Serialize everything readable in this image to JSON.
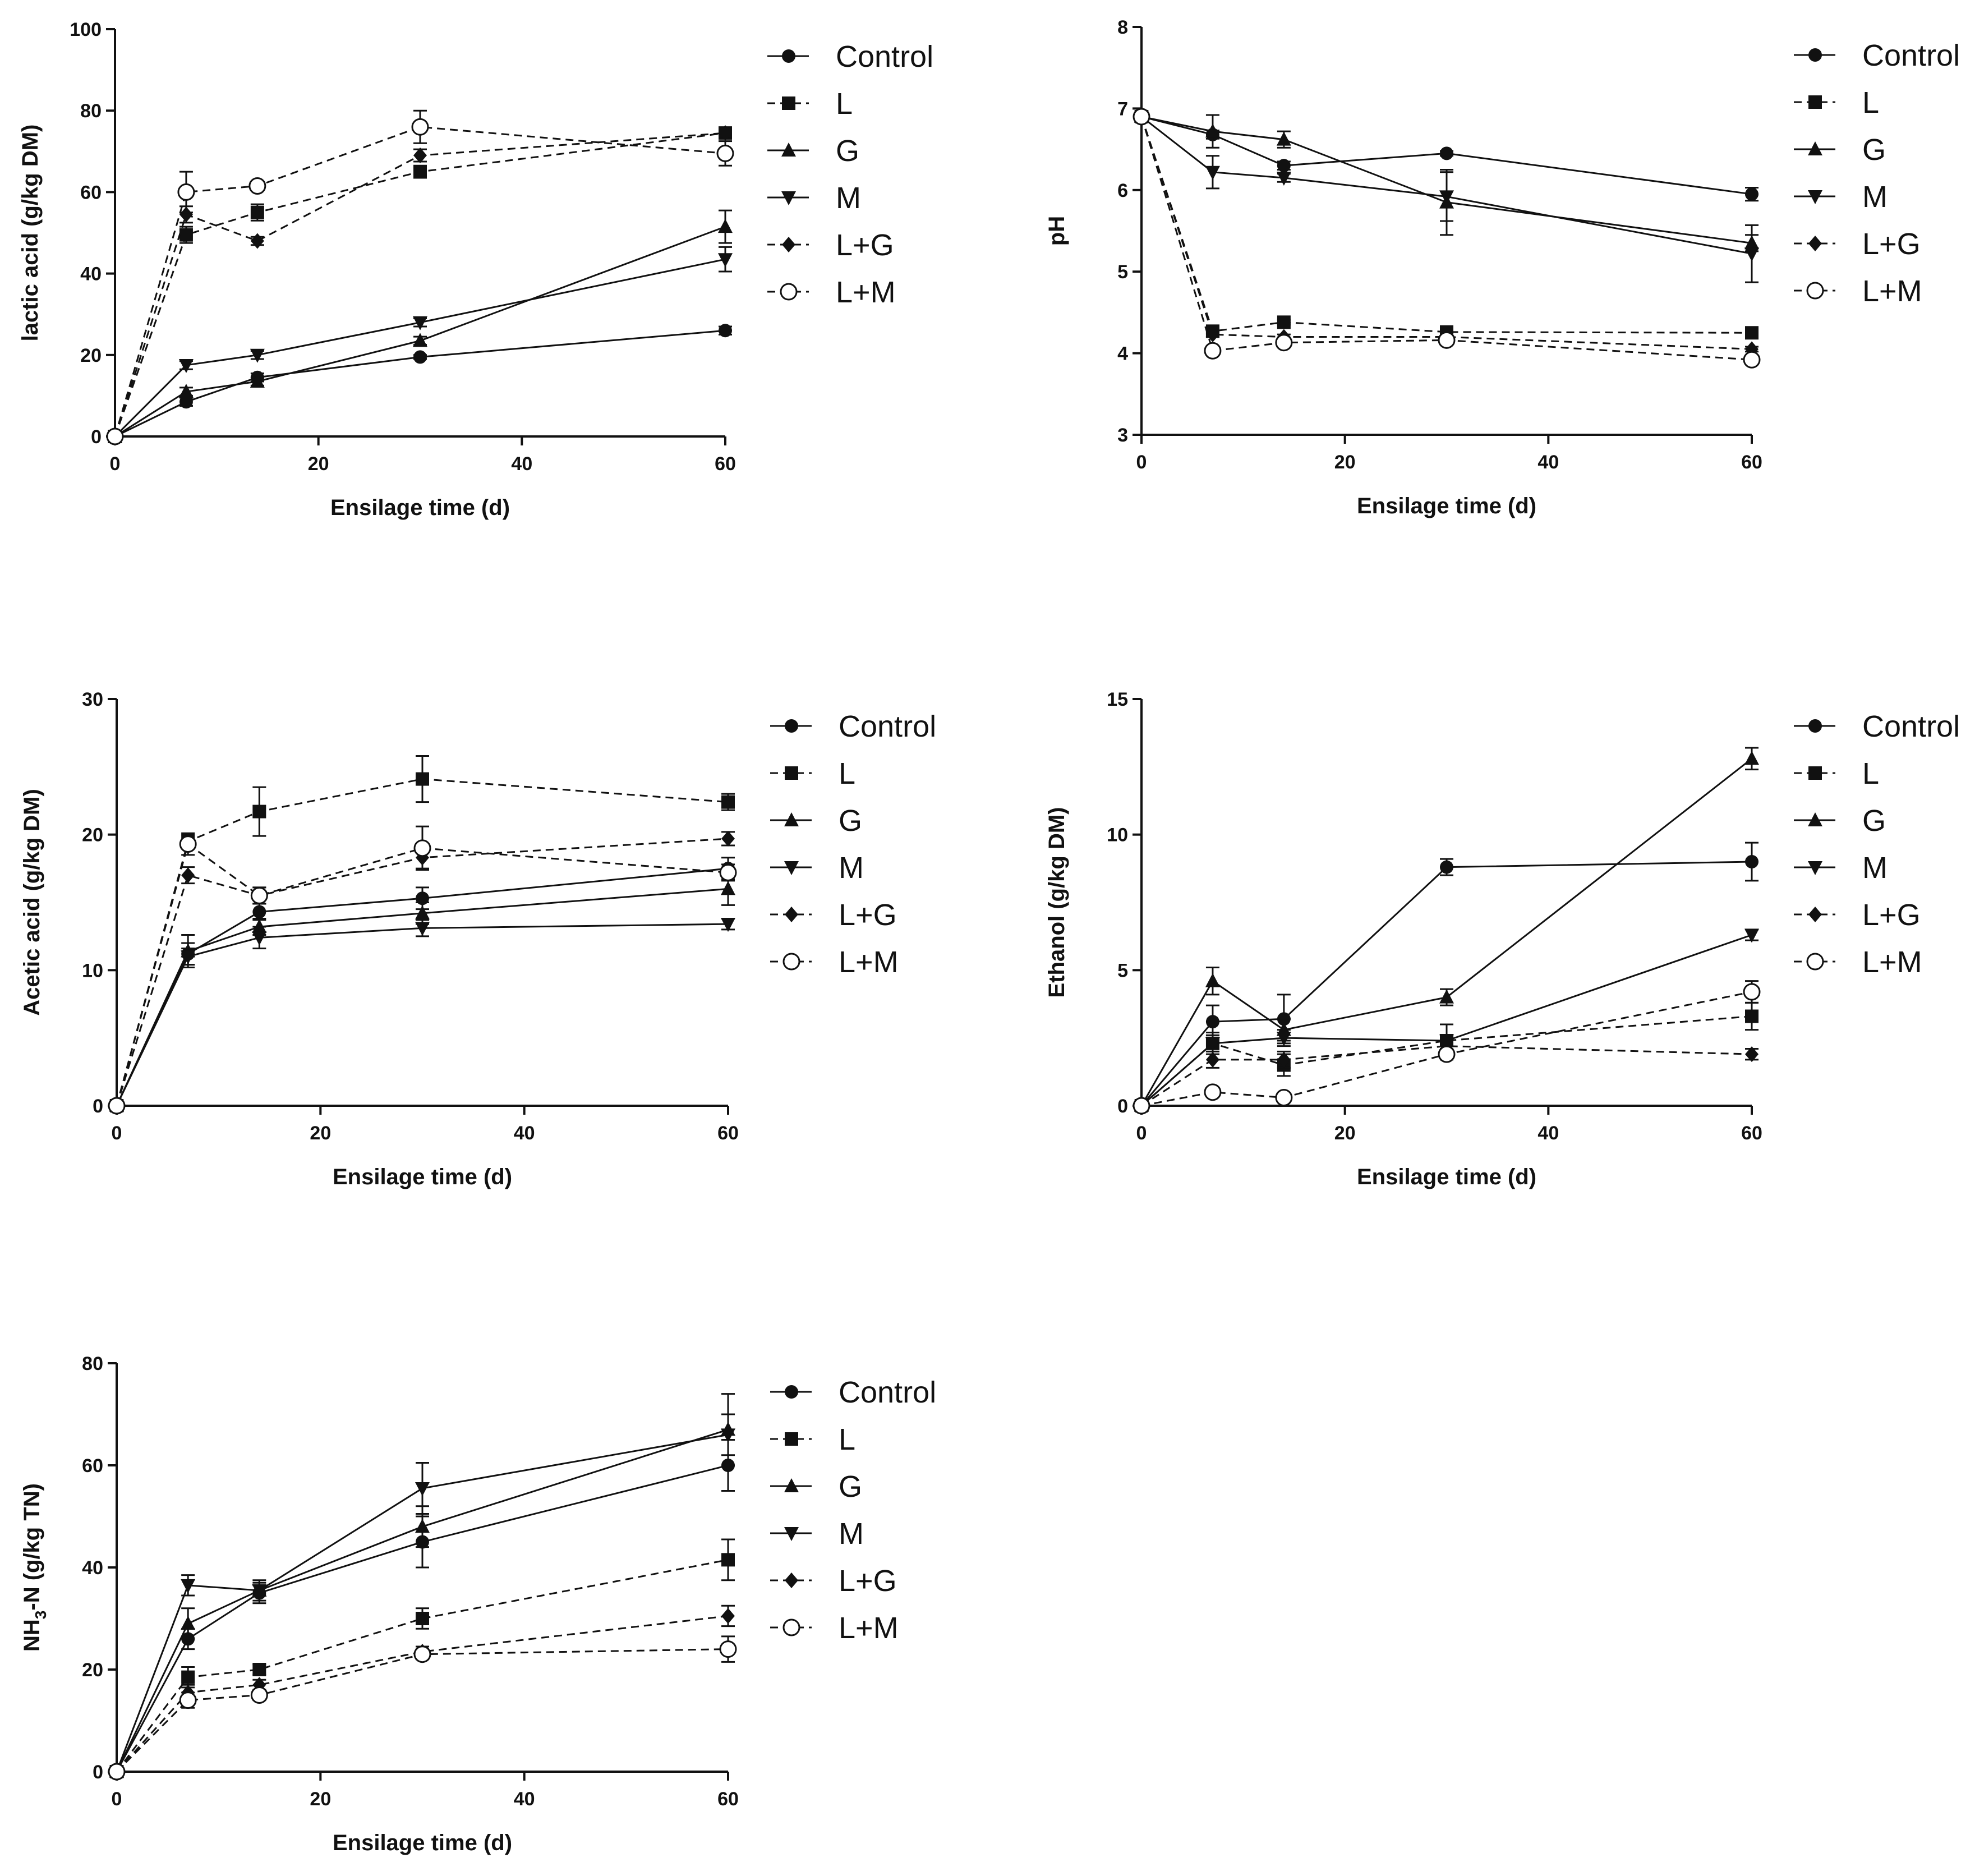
{
  "chart_data": [
    {
      "type": "line",
      "title": "",
      "xlabel": "Ensilage time (d)",
      "ylabel": "lactic acid (g/kg DM)",
      "xlim": [
        0,
        60
      ],
      "ylim": [
        0,
        100
      ],
      "xticks": [
        "0",
        "20",
        "40",
        "60"
      ],
      "yticks": [
        "0",
        "20",
        "40",
        "60",
        "80",
        "100"
      ],
      "x": [
        0,
        7,
        14,
        30,
        60
      ],
      "legend_position": "right",
      "series": [
        {
          "name": "Control",
          "values": [
            0,
            8.5,
            14.5,
            19.5,
            26
          ],
          "errors": [
            0,
            1,
            1,
            0.5,
            1
          ]
        },
        {
          "name": "L",
          "values": [
            0,
            49.5,
            55,
            65,
            74.5
          ],
          "errors": [
            0,
            2,
            2,
            1.5,
            1
          ]
        },
        {
          "name": "G",
          "values": [
            0,
            11,
            13.5,
            23.5,
            51.5
          ],
          "errors": [
            0,
            1,
            1,
            1,
            4
          ]
        },
        {
          "name": "M",
          "values": [
            0,
            17.5,
            20,
            28,
            43.5
          ],
          "errors": [
            0,
            1,
            1,
            1,
            3
          ]
        },
        {
          "name": "L+G",
          "values": [
            0,
            54.5,
            48,
            69,
            74.5
          ],
          "errors": [
            0,
            2,
            1,
            1.5,
            1
          ]
        },
        {
          "name": "L+M",
          "values": [
            0,
            60,
            61.5,
            76,
            69.5
          ],
          "errors": [
            0,
            5,
            1,
            4,
            3
          ]
        }
      ]
    },
    {
      "type": "line",
      "title": "",
      "xlabel": "Ensilage time (d)",
      "ylabel": "pH",
      "xlim": [
        0,
        60
      ],
      "ylim": [
        3,
        8
      ],
      "xticks": [
        "0",
        "20",
        "40",
        "60"
      ],
      "yticks": [
        "3",
        "4",
        "5",
        "6",
        "7",
        "8"
      ],
      "x": [
        0,
        7,
        14,
        30,
        60
      ],
      "legend_position": "right",
      "series": [
        {
          "name": "Control",
          "values": [
            6.9,
            6.68,
            6.3,
            6.45,
            5.95
          ],
          "errors": [
            0,
            0.05,
            0.05,
            0.03,
            0.08
          ]
        },
        {
          "name": "L",
          "values": [
            6.9,
            4.27,
            4.38,
            4.26,
            4.25
          ],
          "errors": [
            0,
            0.03,
            0.03,
            0.03,
            0.03
          ]
        },
        {
          "name": "G",
          "values": [
            6.9,
            6.72,
            6.62,
            5.85,
            5.35
          ],
          "errors": [
            0,
            0.2,
            0.1,
            0.4,
            0.1
          ]
        },
        {
          "name": "M",
          "values": [
            6.9,
            6.22,
            6.15,
            5.92,
            5.22
          ],
          "errors": [
            0,
            0.2,
            0.05,
            0.3,
            0.35
          ]
        },
        {
          "name": "L+G",
          "values": [
            6.9,
            4.23,
            4.2,
            4.2,
            4.05
          ],
          "errors": [
            0,
            0.03,
            0.03,
            0.03,
            0.03
          ]
        },
        {
          "name": "L+M",
          "values": [
            6.9,
            4.03,
            4.13,
            4.16,
            3.92
          ],
          "errors": [
            0,
            0.03,
            0.03,
            0.03,
            0.05
          ]
        }
      ]
    },
    {
      "type": "line",
      "title": "",
      "xlabel": "Ensilage time (d)",
      "ylabel": "Acetic acid (g/kg DM)",
      "xlim": [
        0,
        60
      ],
      "ylim": [
        0,
        30
      ],
      "xticks": [
        "0",
        "20",
        "40",
        "60"
      ],
      "yticks": [
        "0",
        "10",
        "20",
        "30"
      ],
      "x": [
        0,
        7,
        14,
        30,
        60
      ],
      "legend_position": "right",
      "series": [
        {
          "name": "Control",
          "values": [
            0,
            11.2,
            14.3,
            15.3,
            17.5
          ],
          "errors": [
            0,
            0.8,
            0.6,
            0.8,
            0.8
          ]
        },
        {
          "name": "L",
          "values": [
            0,
            19.5,
            21.7,
            24.1,
            22.4
          ],
          "errors": [
            0,
            0.5,
            1.8,
            1.7,
            0.6
          ]
        },
        {
          "name": "G",
          "values": [
            0,
            11.4,
            13.2,
            14.2,
            16.0
          ],
          "errors": [
            0,
            1.2,
            0.6,
            0.8,
            1.2
          ]
        },
        {
          "name": "M",
          "values": [
            0,
            11.0,
            12.4,
            13.1,
            13.4
          ],
          "errors": [
            0,
            0.6,
            0.8,
            0.6,
            0.4
          ]
        },
        {
          "name": "L+G",
          "values": [
            0,
            17.0,
            15.5,
            18.3,
            19.7
          ],
          "errors": [
            0,
            0.6,
            0.6,
            0.8,
            0.5
          ]
        },
        {
          "name": "L+M",
          "values": [
            0,
            19.3,
            15.5,
            19.0,
            17.2
          ],
          "errors": [
            0,
            0.8,
            0.6,
            1.6,
            0.6
          ]
        }
      ]
    },
    {
      "type": "line",
      "title": "",
      "xlabel": "Ensilage time (d)",
      "ylabel": "Ethanol (g/kg DM)",
      "xlim": [
        0,
        60
      ],
      "ylim": [
        0,
        15
      ],
      "xticks": [
        "0",
        "20",
        "40",
        "60"
      ],
      "yticks": [
        "0",
        "5",
        "10",
        "15"
      ],
      "x": [
        0,
        7,
        14,
        30,
        60
      ],
      "legend_position": "right",
      "series": [
        {
          "name": "Control",
          "values": [
            0,
            3.1,
            3.2,
            8.8,
            9.0
          ],
          "errors": [
            0,
            0.6,
            0.9,
            0.3,
            0.7
          ]
        },
        {
          "name": "L",
          "values": [
            0,
            2.3,
            1.5,
            2.4,
            3.3
          ],
          "errors": [
            0,
            0.4,
            0.4,
            0.6,
            0.5
          ]
        },
        {
          "name": "G",
          "values": [
            0,
            4.6,
            2.8,
            4.0,
            12.8
          ],
          "errors": [
            0,
            0.5,
            0.4,
            0.3,
            0.4
          ]
        },
        {
          "name": "M",
          "values": [
            0,
            2.3,
            2.5,
            2.4,
            6.3
          ],
          "errors": [
            0,
            0.3,
            0.3,
            0.2,
            0.2
          ]
        },
        {
          "name": "L+G",
          "values": [
            0,
            1.7,
            1.7,
            2.2,
            1.9
          ],
          "errors": [
            0,
            0.3,
            0.3,
            0.2,
            0.2
          ]
        },
        {
          "name": "L+M",
          "values": [
            0,
            0.5,
            0.3,
            1.9,
            4.2
          ],
          "errors": [
            0,
            0.1,
            0.1,
            0.2,
            0.4
          ]
        }
      ]
    },
    {
      "type": "line",
      "title": "",
      "xlabel": "Ensilage time (d)",
      "ylabel": "NH3-N (g/kg TN)",
      "ylabel_main": "NH",
      "ylabel_sub": "3",
      "ylabel_rest": "-N (g/kg TN)",
      "xlim": [
        0,
        60
      ],
      "ylim": [
        0,
        80
      ],
      "xticks": [
        "0",
        "20",
        "40",
        "60"
      ],
      "yticks": [
        "0",
        "20",
        "40",
        "60",
        "80"
      ],
      "x": [
        0,
        7,
        14,
        30,
        60
      ],
      "legend_position": "right",
      "series": [
        {
          "name": "Control",
          "values": [
            0,
            26,
            35,
            45,
            60
          ],
          "errors": [
            0,
            2,
            2,
            5,
            5
          ]
        },
        {
          "name": "L",
          "values": [
            0,
            18.5,
            20,
            30,
            41.5
          ],
          "errors": [
            0,
            2,
            1,
            2,
            4
          ]
        },
        {
          "name": "G",
          "values": [
            0,
            29,
            35.5,
            48,
            67
          ],
          "errors": [
            0,
            3,
            2,
            4,
            7
          ]
        },
        {
          "name": "M",
          "values": [
            0,
            36.5,
            35.5,
            55.5,
            66
          ],
          "errors": [
            0,
            2,
            1,
            5,
            4
          ]
        },
        {
          "name": "L+G",
          "values": [
            0,
            15.5,
            17,
            23.5,
            30.5
          ],
          "errors": [
            0,
            1.5,
            1,
            1,
            2
          ]
        },
        {
          "name": "L+M",
          "values": [
            0,
            14,
            15,
            23,
            24
          ],
          "errors": [
            0,
            1.5,
            1,
            1,
            2.5
          ]
        }
      ]
    }
  ]
}
